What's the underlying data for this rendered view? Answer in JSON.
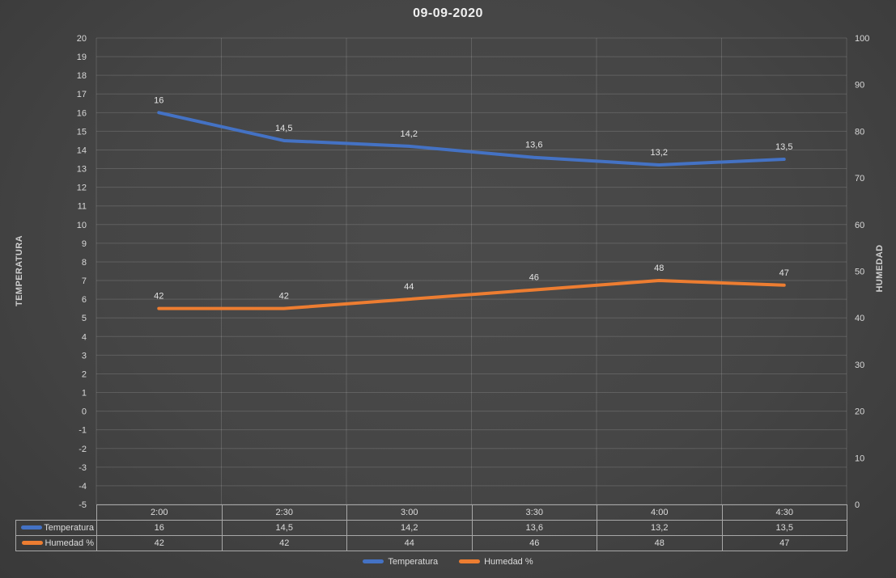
{
  "title": "09-09-2020",
  "colors": {
    "temperatura": "#4472C4",
    "humedad": "#ED7D31",
    "text": "#D8D8D8",
    "gridline": "rgba(255,255,255,0.14)",
    "table_border": "#A8A8A8",
    "background": "#454545"
  },
  "chart_data": {
    "type": "line",
    "title": "09-09-2020",
    "categories": [
      "2:00",
      "2:30",
      "3:00",
      "3:30",
      "4:00",
      "4:30"
    ],
    "series": [
      {
        "name": "Temperatura",
        "axis": "left",
        "color": "#4472C4",
        "values": [
          16,
          14.5,
          14.2,
          13.6,
          13.2,
          13.5
        ],
        "labels": [
          "16",
          "14,5",
          "14,2",
          "13,6",
          "13,2",
          "13,5"
        ]
      },
      {
        "name": "Humedad %",
        "axis": "right",
        "color": "#ED7D31",
        "values": [
          42,
          42,
          44,
          46,
          48,
          47
        ],
        "labels": [
          "42",
          "42",
          "44",
          "46",
          "48",
          "47"
        ]
      }
    ],
    "left_axis": {
      "title": "TEMPERATURA",
      "min": -5,
      "max": 20,
      "step": 1,
      "ticks": [
        "20",
        "19",
        "18",
        "17",
        "16",
        "15",
        "14",
        "13",
        "12",
        "11",
        "10",
        "9",
        "8",
        "7",
        "6",
        "5",
        "4",
        "3",
        "2",
        "1",
        "0",
        "-1",
        "-2",
        "-3",
        "-4",
        "-5"
      ]
    },
    "right_axis": {
      "title": "HUMEDAD",
      "min": 0,
      "max": 100,
      "step": 10,
      "ticks": [
        "100",
        "90",
        "80",
        "70",
        "60",
        "50",
        "40",
        "30",
        "20",
        "10",
        "0"
      ]
    },
    "grid": true,
    "legend_position": "bottom",
    "data_table_shown": true
  }
}
